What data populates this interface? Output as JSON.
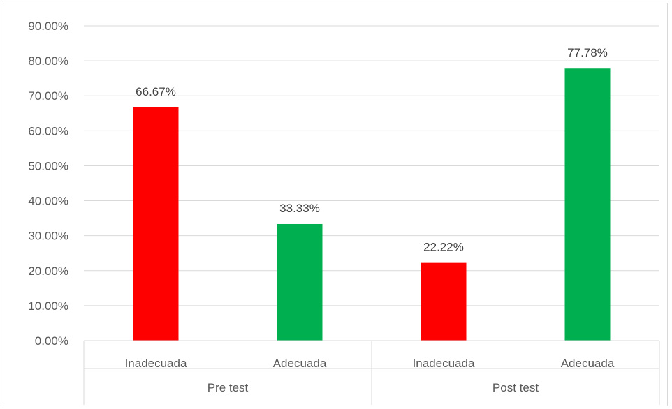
{
  "chart_data": {
    "type": "bar",
    "title": "",
    "xlabel": "",
    "ylabel": "",
    "ylim": [
      0,
      0.9
    ],
    "yticks": [
      0,
      0.1,
      0.2,
      0.3,
      0.4,
      0.5,
      0.6,
      0.7,
      0.8,
      0.9
    ],
    "ytick_labels": [
      "0.00%",
      "10.00%",
      "20.00%",
      "30.00%",
      "40.00%",
      "50.00%",
      "60.00%",
      "70.00%",
      "80.00%",
      "90.00%"
    ],
    "grid": true,
    "legend": "none",
    "groups": [
      {
        "label": "Pre test",
        "categories": [
          "Inadecuada",
          "Adecuada"
        ]
      },
      {
        "label": "Post test",
        "categories": [
          "Inadecuada",
          "Adecuada"
        ]
      }
    ],
    "bars": [
      {
        "group": "Pre test",
        "category": "Inadecuada",
        "value": 0.6667,
        "label": "66.67%",
        "color": "#ff0000"
      },
      {
        "group": "Pre test",
        "category": "Adecuada",
        "value": 0.3333,
        "label": "33.33%",
        "color": "#00b050"
      },
      {
        "group": "Post test",
        "category": "Inadecuada",
        "value": 0.2222,
        "label": "22.22%",
        "color": "#ff0000"
      },
      {
        "group": "Post test",
        "category": "Adecuada",
        "value": 0.7778,
        "label": "77.78%",
        "color": "#00b050"
      }
    ]
  }
}
